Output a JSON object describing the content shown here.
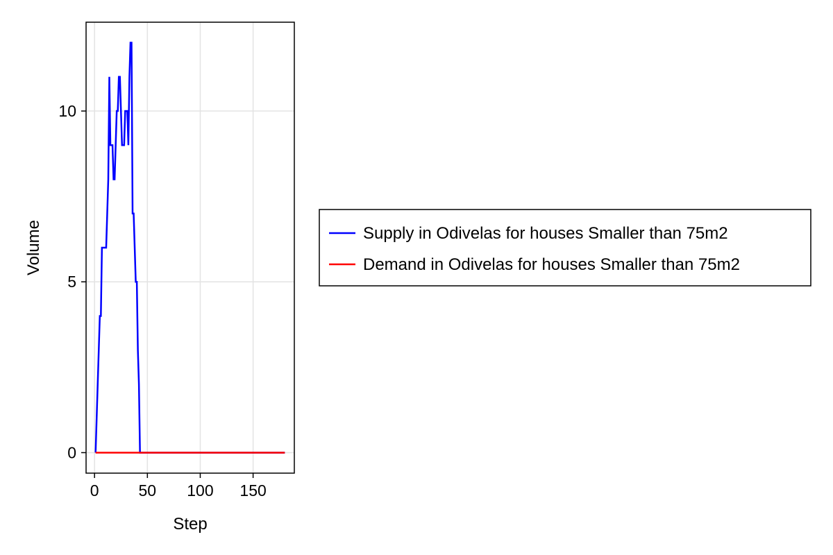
{
  "chart_data": {
    "type": "line",
    "title": "",
    "xlabel": "Step",
    "ylabel": "Volume",
    "xlim": [
      -8,
      189
    ],
    "ylim": [
      -0.6,
      12.6
    ],
    "xticks": [
      0,
      50,
      100,
      150
    ],
    "xtick_labels": [
      "0",
      "50",
      "100",
      "150"
    ],
    "yticks": [
      0,
      5,
      10
    ],
    "ytick_labels": [
      "0",
      "5",
      "10"
    ],
    "grid": true,
    "legend_position": "right",
    "series": [
      {
        "name": "Supply in Odivelas for houses Smaller than 75m2",
        "color": "#0000ff",
        "x": [
          1,
          2,
          3,
          4,
          5,
          6,
          7,
          8,
          9,
          10,
          11,
          12,
          13,
          14,
          15,
          16,
          17,
          18,
          19,
          20,
          21,
          22,
          23,
          24,
          25,
          26,
          27,
          28,
          29,
          30,
          31,
          32,
          33,
          34,
          35,
          36,
          37,
          38,
          39,
          40,
          41,
          42,
          43,
          44,
          45,
          50,
          100,
          150,
          180
        ],
        "y": [
          0,
          1,
          2,
          3,
          4,
          4,
          6,
          6,
          6,
          6,
          6,
          7,
          8,
          11,
          9,
          9,
          9,
          8,
          8,
          9,
          10,
          10,
          11,
          11,
          10,
          9,
          9,
          9,
          10,
          10,
          10,
          9,
          11,
          12,
          12,
          7,
          7,
          6,
          5,
          5,
          3,
          2,
          0,
          0,
          0,
          0,
          0,
          0,
          0
        ]
      },
      {
        "name": "Demand in Odivelas for houses Smaller than 75m2",
        "color": "#ff0000",
        "x": [
          1,
          180
        ],
        "y": [
          0,
          0
        ]
      }
    ]
  }
}
